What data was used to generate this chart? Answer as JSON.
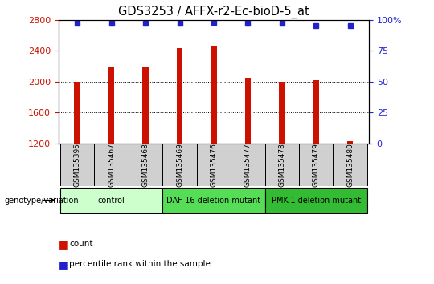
{
  "title": "GDS3253 / AFFX-r2-Ec-bioD-5_at",
  "samples": [
    "GSM135395",
    "GSM135467",
    "GSM135468",
    "GSM135469",
    "GSM135476",
    "GSM135477",
    "GSM135478",
    "GSM135479",
    "GSM135480"
  ],
  "bar_values": [
    2000,
    2200,
    2200,
    2430,
    2470,
    2050,
    2000,
    2020,
    1230
  ],
  "percentile_values": [
    97,
    97,
    97,
    97,
    98,
    97,
    97,
    95,
    95
  ],
  "ymin": 1200,
  "ymax": 2800,
  "yticks": [
    1200,
    1600,
    2000,
    2400,
    2800
  ],
  "y2ticks": [
    0,
    25,
    50,
    75,
    100
  ],
  "bar_color": "#cc1100",
  "dot_color": "#2222cc",
  "groups": [
    {
      "label": "control",
      "start": 0,
      "end": 3,
      "color": "#ccffcc"
    },
    {
      "label": "DAF-16 deletion mutant",
      "start": 3,
      "end": 6,
      "color": "#55dd55"
    },
    {
      "label": "PMK-1 deletion mutant",
      "start": 6,
      "end": 9,
      "color": "#33bb33"
    }
  ],
  "legend_count_label": "count",
  "legend_pct_label": "percentile rank within the sample",
  "genotype_label": "genotype/variation",
  "title_fontsize": 10.5,
  "tick_fontsize": 8,
  "sample_box_color": "#d0d0d0"
}
